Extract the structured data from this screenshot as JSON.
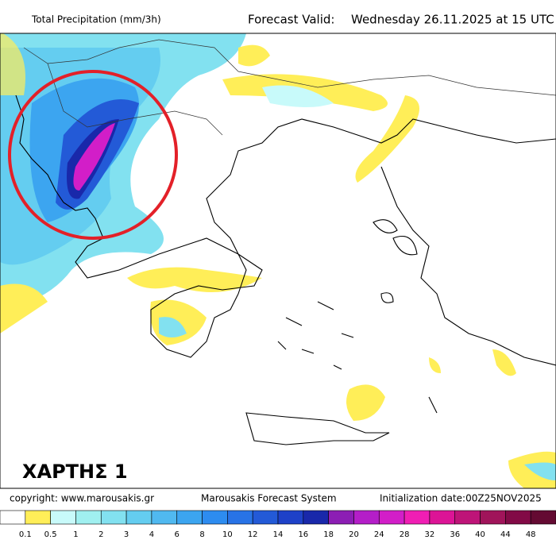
{
  "header": {
    "title": "Total Precipitation (mm/3h)",
    "forecast_label": "Forecast Valid:",
    "forecast_time": "Wednesday 26.11.2025 at 15 UTC"
  },
  "map": {
    "label": "ΧΑΡΤΗΣ 1"
  },
  "footer": {
    "copyright": "copyright: www.marousakis.gr",
    "system": "Marousakis Forecast System",
    "init": "Initialization date:00Z25NOV2025"
  },
  "legend": {
    "ticks": [
      0.1,
      0.5,
      1,
      2,
      3,
      4,
      6,
      8,
      10,
      12,
      14,
      16,
      18,
      20,
      24,
      28,
      32,
      36,
      40,
      44,
      48
    ],
    "colors": [
      "#ffffff",
      "#ffee58",
      "#c8fafa",
      "#a0f0f0",
      "#82e1f0",
      "#64cdf0",
      "#50b9f0",
      "#3ca5f0",
      "#2d8cf0",
      "#2873e6",
      "#235ad7",
      "#1e41c8",
      "#1928aa",
      "#8c1eb4",
      "#b41ec8",
      "#d21ec8",
      "#f01eb4",
      "#dc1496",
      "#be1478",
      "#a0145a",
      "#820a46",
      "#640a32"
    ]
  }
}
